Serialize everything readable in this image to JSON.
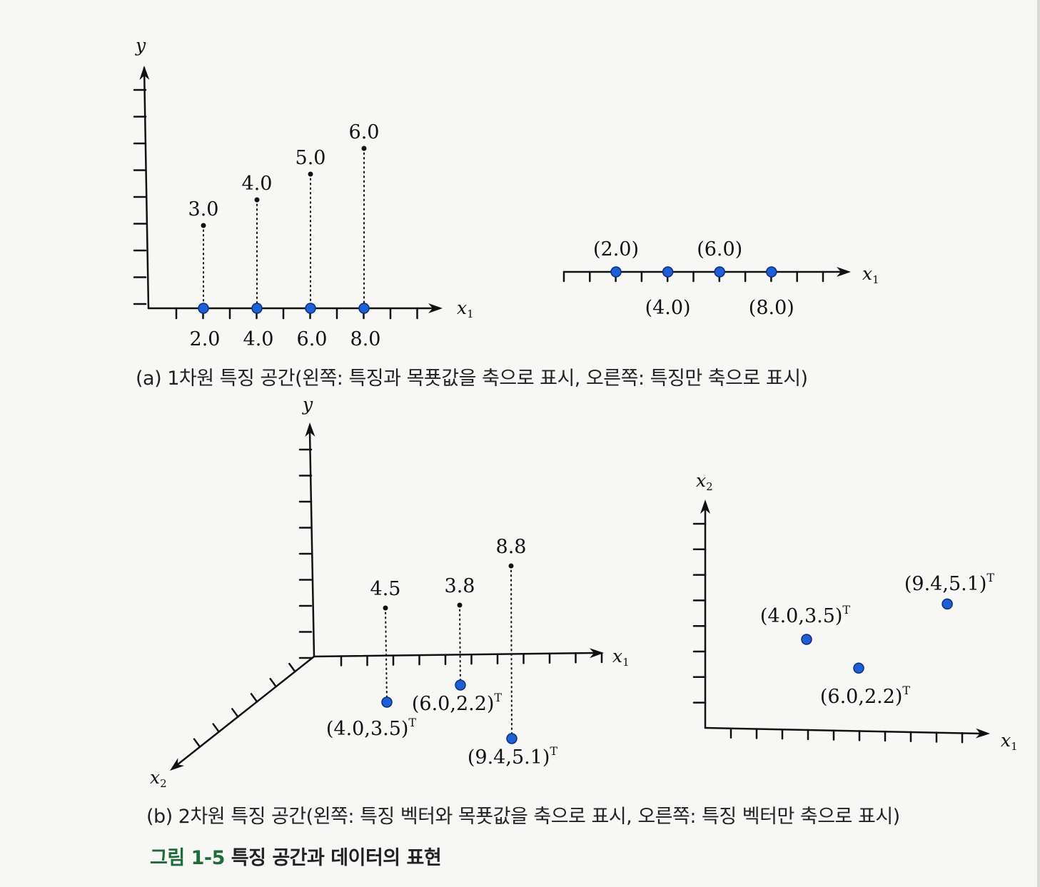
{
  "colors": {
    "point": "#1f5fd6",
    "ink": "#111111",
    "caption_green": "#1f6b3a"
  },
  "panel_a_left": {
    "y_label": "y",
    "x_label": "x",
    "x_label_sub": "1",
    "points": [
      {
        "x": 2.0,
        "y": 3.0,
        "x_text": "2.0",
        "y_text": "3.0"
      },
      {
        "x": 4.0,
        "y": 4.0,
        "x_text": "4.0",
        "y_text": "4.0"
      },
      {
        "x": 6.0,
        "y": 5.0,
        "x_text": "6.0",
        "y_text": "5.0"
      },
      {
        "x": 8.0,
        "y": 6.0,
        "x_text": "8.0",
        "y_text": "6.0"
      }
    ]
  },
  "panel_a_right": {
    "x_label": "x",
    "x_label_sub": "1",
    "points": [
      {
        "x": 2.0,
        "label": "(2.0)"
      },
      {
        "x": 4.0,
        "label": "(4.0)"
      },
      {
        "x": 6.0,
        "label": "(6.0)"
      },
      {
        "x": 8.0,
        "label": "(8.0)"
      }
    ]
  },
  "panel_b_left": {
    "y_label": "y",
    "x1_label": "x",
    "x1_sub": "1",
    "x2_label": "x",
    "x2_sub": "2",
    "points": [
      {
        "x1": 4.0,
        "x2": 3.5,
        "y": 4.5,
        "label": "(4.0,3.5)",
        "sup": "T",
        "y_text": "4.5"
      },
      {
        "x1": 6.0,
        "x2": 2.2,
        "y": 3.8,
        "label": "(6.0,2.2)",
        "sup": "T",
        "y_text": "3.8"
      },
      {
        "x1": 9.4,
        "x2": 5.1,
        "y": 8.8,
        "label": "(9.4,5.1)",
        "sup": "T",
        "y_text": "8.8"
      }
    ]
  },
  "panel_b_right": {
    "x1_label": "x",
    "x1_sub": "1",
    "x2_label": "x",
    "x2_sub": "2",
    "points": [
      {
        "x1": 4.0,
        "x2": 3.5,
        "label": "(4.0,3.5)",
        "sup": "T"
      },
      {
        "x1": 6.0,
        "x2": 2.2,
        "label": "(6.0,2.2)",
        "sup": "T"
      },
      {
        "x1": 9.4,
        "x2": 5.1,
        "label": "(9.4,5.1)",
        "sup": "T"
      }
    ]
  },
  "captions": {
    "a": "(a) 1차원 특징 공간(왼쪽: 특징과 목푯값을 축으로 표시, 오른쪽: 특징만 축으로 표시)",
    "b": "(b) 2차원 특징 공간(왼쪽: 특징 벡터와 목푯값을 축으로 표시, 오른쪽: 특징 벡터만 축으로 표시)",
    "figure_number": "그림 1-5",
    "figure_title": "특징 공간과 데이터의 표현"
  }
}
